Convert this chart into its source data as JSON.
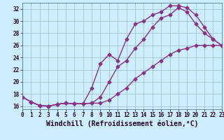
{
  "xlabel": "Windchill (Refroidissement éolien,°C)",
  "bg_color": "#cceeff",
  "line_color": "#883388",
  "xlim": [
    0,
    23
  ],
  "ylim": [
    15.5,
    33.0
  ],
  "xticks": [
    0,
    1,
    2,
    3,
    4,
    5,
    6,
    7,
    8,
    9,
    10,
    11,
    12,
    13,
    14,
    15,
    16,
    17,
    18,
    19,
    20,
    21,
    22,
    23
  ],
  "yticks": [
    16,
    18,
    20,
    22,
    24,
    26,
    28,
    30,
    32
  ],
  "grid_color": "#99bbcc",
  "line1_x": [
    0,
    1,
    2,
    3,
    4,
    5,
    6,
    7,
    8,
    9,
    10,
    11,
    12,
    13,
    14,
    15,
    16,
    17,
    18,
    19,
    20,
    21,
    22,
    23
  ],
  "line1_y": [
    17.5,
    16.7,
    16.1,
    16.0,
    16.3,
    16.5,
    16.4,
    16.4,
    16.5,
    16.5,
    17.0,
    18.0,
    19.0,
    20.5,
    21.5,
    22.5,
    23.5,
    24.5,
    25.2,
    25.5,
    26.0,
    26.0,
    26.0,
    26.0
  ],
  "line2_x": [
    0,
    1,
    2,
    3,
    4,
    5,
    6,
    7,
    8,
    9,
    10,
    11,
    12,
    13,
    14,
    15,
    16,
    17,
    18,
    19,
    20,
    21,
    22,
    23
  ],
  "line2_y": [
    17.5,
    16.7,
    16.1,
    16.0,
    16.3,
    16.5,
    16.4,
    16.4,
    16.5,
    17.5,
    20.0,
    22.5,
    23.5,
    25.5,
    27.0,
    29.0,
    30.5,
    31.0,
    32.2,
    31.5,
    29.5,
    28.0,
    27.0,
    26.0
  ],
  "line3_x": [
    0,
    1,
    2,
    3,
    4,
    5,
    6,
    7,
    8,
    9,
    10,
    11,
    12,
    13,
    14,
    15,
    16,
    17,
    18,
    19,
    20,
    21,
    22,
    23
  ],
  "line3_y": [
    17.5,
    16.7,
    16.1,
    16.0,
    16.3,
    16.5,
    16.4,
    16.4,
    19.0,
    23.0,
    24.5,
    23.5,
    27.0,
    29.5,
    30.0,
    31.0,
    31.5,
    32.5,
    32.5,
    32.2,
    31.0,
    29.0,
    27.0,
    26.0
  ],
  "marker": "D",
  "markersize": 2.5,
  "linewidth": 1.0,
  "tick_fontsize": 5.5,
  "xlabel_fontsize": 7.0
}
